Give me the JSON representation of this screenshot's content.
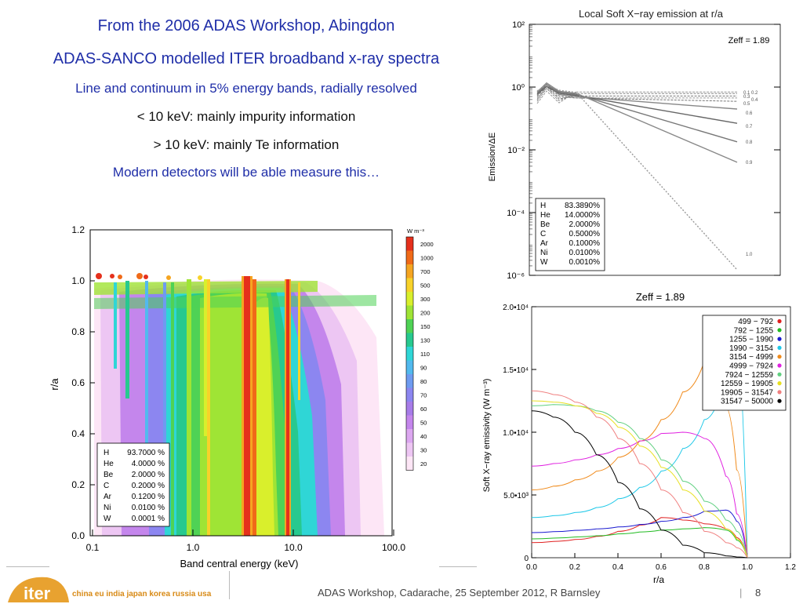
{
  "header": {
    "line1": "From the 2006 ADAS Workshop, Abingdon",
    "line2": "ADAS-SANCO modelled ITER broadband x-ray spectra",
    "line3": "Line and continuum in 5% energy bands, radially resolved",
    "line4": "< 10 keV: mainly impurity information",
    "line5": "> 10 keV: mainly Te information",
    "line6": "Modern detectors will be able measure this…"
  },
  "colors": {
    "title_blue": "#1f2ea8",
    "iter_orange": "#e8a230"
  },
  "contour_plot": {
    "xlabel": "Band central energy (keV)",
    "ylabel": "r/a",
    "xticks": [
      "0.1",
      "1.0",
      "10.0",
      "100.0"
    ],
    "yticks": [
      "0.0",
      "0.2",
      "0.4",
      "0.6",
      "0.8",
      "1.0",
      "1.2"
    ],
    "colorbar_unit": "W m⁻³",
    "colorbar_levels": [
      "2000",
      "1000",
      "700",
      "500",
      "300",
      "200",
      "150",
      "130",
      "110",
      "90",
      "80",
      "70",
      "60",
      "50",
      "40",
      "30",
      "20"
    ],
    "colorbar_colors": [
      "#e5301c",
      "#f06a18",
      "#f5a521",
      "#f8d22a",
      "#d9ef2c",
      "#9fe435",
      "#4fd255",
      "#27c98f",
      "#2fd6d6",
      "#52b9ee",
      "#6e9bf0",
      "#8c86f0",
      "#a77ce8",
      "#c486ec",
      "#dca7f0",
      "#edc6f3",
      "#fde6f6"
    ],
    "composition": [
      {
        "el": "H",
        "val": "93.7000 %"
      },
      {
        "el": "He",
        "val": "4.0000 %"
      },
      {
        "el": "Be",
        "val": "2.0000 %"
      },
      {
        "el": "C",
        "val": "0.2000 %"
      },
      {
        "el": "Ar",
        "val": "0.1200 %"
      },
      {
        "el": "Ni",
        "val": "0.0100 %"
      },
      {
        "el": "W",
        "val": "0.0001 %"
      }
    ]
  },
  "chart_data": [
    {
      "type": "line",
      "title": "Local Soft X−ray emission at r/a",
      "ylabel": "Emission/ΔE",
      "y_scale": "log",
      "ylim": [
        1e-06,
        100
      ],
      "yticks": [
        "10²",
        "10⁰",
        "10⁻²",
        "10⁻⁴",
        "10⁻⁶"
      ],
      "annotation": "Zeff =  1.89",
      "curve_labels": [
        "0.1",
        "0.2",
        "0.3",
        "0.4",
        "0.5",
        "0.6",
        "0.7",
        "0.8",
        "0.9",
        "1.0"
      ],
      "composition": [
        {
          "el": "H",
          "val": "83.3890%"
        },
        {
          "el": "He",
          "val": "14.0000%"
        },
        {
          "el": "Be",
          "val": "2.0000%"
        },
        {
          "el": "C",
          "val": "0.5000%"
        },
        {
          "el": "Ar",
          "val": "0.1000%"
        },
        {
          "el": "Ni",
          "val": "0.0100%"
        },
        {
          "el": "W",
          "val": "0.0010%"
        }
      ]
    },
    {
      "type": "line",
      "title": "Zeff =  1.89",
      "xlabel": "r/a",
      "ylabel": "Soft X−ray emissivity (W m⁻³)",
      "xlim": [
        0,
        1.2
      ],
      "ylim": [
        0,
        20000
      ],
      "xticks": [
        "0.0",
        "0.2",
        "0.4",
        "0.6",
        "0.8",
        "1.0",
        "1.2"
      ],
      "yticks": [
        "0",
        "5.0•10³",
        "1.0•10⁴",
        "1.5•10⁴",
        "2.0•10⁴"
      ],
      "x": [
        0.0,
        0.1,
        0.2,
        0.3,
        0.4,
        0.5,
        0.6,
        0.7,
        0.8,
        0.9,
        0.95,
        1.0
      ],
      "series": [
        {
          "name": "499 −   792",
          "color": "#e02020",
          "values": [
            1200,
            1300,
            1450,
            1700,
            2100,
            2600,
            3200,
            3000,
            2700,
            2300,
            1600,
            0
          ]
        },
        {
          "name": "792 −  1255",
          "color": "#22bb22",
          "values": [
            1500,
            1560,
            1650,
            1750,
            1900,
            2050,
            2200,
            2300,
            2400,
            2200,
            1400,
            0
          ]
        },
        {
          "name": "1255 −  1990",
          "color": "#1a1ad0",
          "values": [
            2000,
            2080,
            2180,
            2300,
            2450,
            2650,
            2900,
            3200,
            3700,
            3800,
            2900,
            0
          ]
        },
        {
          "name": "1990 −  3154",
          "color": "#1ec8e8",
          "values": [
            3200,
            3350,
            3600,
            4000,
            4700,
            5600,
            6900,
            8700,
            11000,
            14500,
            17000,
            0
          ]
        },
        {
          "name": "3154 −  4999",
          "color": "#f08a1a",
          "values": [
            5400,
            5700,
            6200,
            6900,
            8000,
            9300,
            11000,
            13200,
            15600,
            12000,
            7000,
            0
          ]
        },
        {
          "name": "4999 −  7924",
          "color": "#e020e0",
          "values": [
            7300,
            7500,
            7800,
            8200,
            8700,
            9300,
            9900,
            10000,
            9500,
            6500,
            3500,
            0
          ]
        },
        {
          "name": "7924 − 12559",
          "color": "#60d080",
          "values": [
            12100,
            12200,
            12100,
            11700,
            10800,
            9500,
            7800,
            6100,
            4500,
            3000,
            2100,
            0
          ]
        },
        {
          "name": "12559 − 19905",
          "color": "#e8e020",
          "values": [
            12500,
            12400,
            12100,
            11500,
            10400,
            8900,
            7200,
            5400,
            3700,
            2300,
            1500,
            0
          ]
        },
        {
          "name": "19905 − 31547",
          "color": "#f08080",
          "values": [
            13300,
            13000,
            12400,
            11200,
            9500,
            7500,
            5400,
            3600,
            2100,
            1200,
            800,
            0
          ]
        },
        {
          "name": "31547 − 50000",
          "color": "#000000",
          "values": [
            11700,
            11200,
            10000,
            8200,
            6000,
            3900,
            2200,
            1000,
            400,
            150,
            60,
            0
          ]
        }
      ]
    }
  ],
  "footer": {
    "logo_word": "iter",
    "logo_countries": "china eu india japan korea russia usa",
    "text": "ADAS Workshop, Cadarache, 25 September 2012, R Barnsley",
    "separator": "|",
    "page": "8"
  }
}
